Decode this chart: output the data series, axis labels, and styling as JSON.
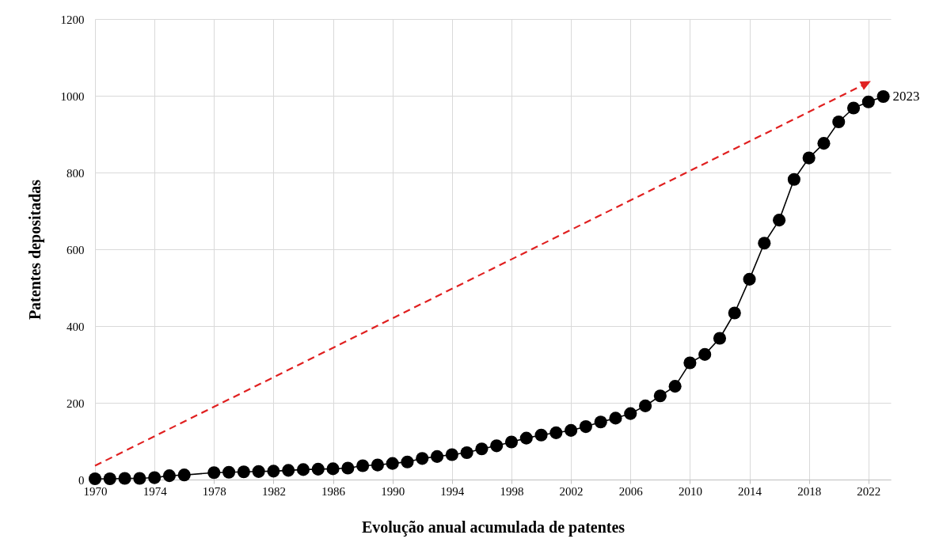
{
  "chart_data": {
    "type": "line",
    "xlabel": "Evolução anual acumulada de patentes",
    "ylabel": "Patentes depositadas",
    "x": [
      1970,
      1971,
      1972,
      1973,
      1974,
      1975,
      1976,
      1978,
      1979,
      1980,
      1981,
      1982,
      1983,
      1984,
      1985,
      1986,
      1987,
      1988,
      1989,
      1990,
      1991,
      1992,
      1993,
      1994,
      1995,
      1996,
      1997,
      1998,
      1999,
      2000,
      2001,
      2002,
      2003,
      2004,
      2005,
      2006,
      2007,
      2008,
      2009,
      2010,
      2011,
      2012,
      2013,
      2014,
      2015,
      2016,
      2017,
      2018,
      2019,
      2020,
      2021,
      2022,
      2023
    ],
    "series": [
      {
        "color": "#000000",
        "values": [
          2,
          2,
          3,
          3,
          5,
          10,
          12,
          18,
          19,
          20,
          21,
          22,
          24,
          26,
          27,
          28,
          30,
          36,
          38,
          42,
          46,
          55,
          60,
          65,
          70,
          80,
          88,
          98,
          108,
          116,
          122,
          128,
          138,
          150,
          160,
          172,
          192,
          218,
          243,
          304,
          326,
          368,
          434,
          522,
          616,
          676,
          782,
          838,
          876,
          932,
          968,
          984,
          998
        ]
      }
    ],
    "xlim": [
      1970,
      2023.5
    ],
    "xticks": [
      1970,
      1974,
      1978,
      1982,
      1986,
      1990,
      1994,
      1998,
      2002,
      2006,
      2010,
      2014,
      2018,
      2022
    ],
    "ylim": [
      0,
      1200
    ],
    "yticks": [
      0,
      200,
      400,
      600,
      800,
      1000,
      1200
    ],
    "grid": true,
    "marker": "circle",
    "line_style": "solid",
    "annotations": [
      {
        "text": "2023",
        "x": 2023,
        "y": 998
      }
    ]
  }
}
